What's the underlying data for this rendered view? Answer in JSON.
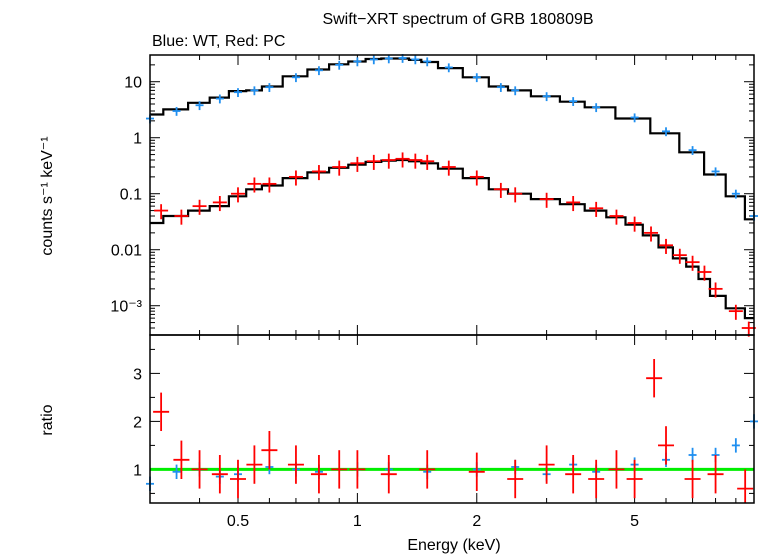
{
  "chart_data": [
    {
      "type": "scatter",
      "panel": "spectrum",
      "title": "Swift−XRT spectrum of GRB 180809B",
      "subtitle": "Blue: WT, Red: PC",
      "xlabel": "",
      "ylabel": "counts s⁻¹ keV⁻¹",
      "xscale": "log",
      "yscale": "log",
      "xlim": [
        0.3,
        10
      ],
      "ylim": [
        0.0003,
        30
      ],
      "x_ticks": [
        "0.5",
        "1",
        "2",
        "5"
      ],
      "y_ticks": [
        "10",
        "1",
        "0.1",
        "0.01",
        "10⁻³"
      ],
      "y_tick_values": [
        10,
        1,
        0.1,
        0.01,
        0.001
      ],
      "colors": {
        "WT": "#1f8ff0",
        "PC": "#ff0000",
        "model": "#000000"
      },
      "series": [
        {
          "x": [
            0.3,
            0.35,
            0.4,
            0.45,
            0.5,
            0.55,
            0.6,
            0.7,
            0.8,
            0.9,
            1.0,
            1.1,
            1.2,
            1.3,
            1.4,
            1.5,
            1.7,
            2.0,
            2.3,
            2.5,
            3.0,
            3.5,
            4.0,
            5.0,
            6.0,
            7.0,
            8.0,
            9.0,
            10.0
          ],
          "y": [
            2.2,
            3.0,
            3.8,
            5.0,
            6.5,
            7.0,
            8.0,
            12.0,
            16.0,
            20.0,
            23.0,
            25.0,
            26.0,
            26.5,
            25.0,
            23.0,
            18.0,
            12.0,
            8.0,
            7.0,
            5.5,
            4.5,
            3.5,
            2.3,
            1.3,
            0.6,
            0.25,
            0.1,
            0.04
          ]
        },
        {
          "x": [
            0.32,
            0.36,
            0.4,
            0.45,
            0.5,
            0.55,
            0.6,
            0.7,
            0.8,
            0.9,
            1.0,
            1.1,
            1.2,
            1.3,
            1.4,
            1.5,
            1.7,
            2.0,
            2.3,
            2.5,
            3.0,
            3.5,
            4.0,
            4.5,
            5.0,
            5.5,
            6.0,
            6.5,
            7.0,
            7.5,
            8.0,
            9.0,
            9.7
          ],
          "y": [
            0.05,
            0.04,
            0.06,
            0.07,
            0.1,
            0.15,
            0.15,
            0.2,
            0.25,
            0.3,
            0.35,
            0.38,
            0.4,
            0.42,
            0.4,
            0.38,
            0.3,
            0.2,
            0.12,
            0.1,
            0.08,
            0.07,
            0.055,
            0.04,
            0.03,
            0.02,
            0.012,
            0.008,
            0.006,
            0.004,
            0.002,
            0.0008,
            0.0004
          ]
        },
        {
          "x": [
            0.3,
            0.35,
            0.4,
            0.45,
            0.5,
            0.55,
            0.6,
            0.7,
            0.8,
            0.9,
            1.0,
            1.1,
            1.2,
            1.3,
            1.4,
            1.5,
            1.7,
            2.0,
            2.3,
            2.5,
            3.0,
            3.5,
            4.0,
            5.0,
            6.0,
            7.0,
            8.0,
            9.0,
            10.0
          ],
          "y": [
            2.6,
            3.2,
            4.2,
            5.2,
            6.8,
            7.0,
            8.2,
            12.5,
            16.5,
            20.5,
            23.0,
            25.5,
            26.0,
            26.0,
            24.5,
            22.5,
            17.5,
            12.0,
            8.2,
            7.0,
            5.5,
            4.4,
            3.5,
            2.2,
            1.2,
            0.55,
            0.22,
            0.09,
            0.035
          ]
        },
        {
          "x": [
            0.3,
            0.35,
            0.4,
            0.45,
            0.5,
            0.55,
            0.6,
            0.7,
            0.8,
            0.9,
            1.0,
            1.1,
            1.2,
            1.3,
            1.4,
            1.5,
            1.7,
            2.0,
            2.3,
            2.5,
            3.0,
            3.5,
            4.0,
            4.5,
            5.0,
            5.5,
            6.0,
            6.5,
            7.0,
            7.5,
            8.0,
            9.0,
            10.0
          ],
          "y": [
            0.03,
            0.04,
            0.05,
            0.06,
            0.09,
            0.12,
            0.14,
            0.19,
            0.24,
            0.29,
            0.33,
            0.37,
            0.39,
            0.4,
            0.38,
            0.35,
            0.28,
            0.19,
            0.12,
            0.1,
            0.08,
            0.065,
            0.05,
            0.038,
            0.028,
            0.018,
            0.011,
            0.007,
            0.005,
            0.003,
            0.0015,
            0.0009,
            0.0006
          ]
        }
      ]
    },
    {
      "type": "scatter",
      "panel": "ratio",
      "xlabel": "Energy (keV)",
      "ylabel": "ratio",
      "xscale": "log",
      "xlim": [
        0.3,
        10
      ],
      "ylim": [
        0.3,
        3.8
      ],
      "x_ticks": [
        "0.5",
        "1",
        "2",
        "5"
      ],
      "y_ticks": [
        "1",
        "2",
        "3"
      ],
      "y_tick_values": [
        1,
        2,
        3
      ],
      "reference_line": 1,
      "reference_line_color": "#00ee00",
      "series": [
        {
          "x": [
            0.3,
            0.35,
            0.4,
            0.45,
            0.5,
            0.6,
            0.7,
            0.8,
            1.0,
            1.2,
            1.5,
            2.0,
            2.5,
            3.0,
            3.5,
            4.0,
            5.0,
            6.0,
            7.0,
            8.0,
            9.0,
            10.0
          ],
          "y": [
            0.7,
            0.95,
            1.0,
            0.85,
            0.9,
            1.05,
            1.0,
            0.95,
            1.0,
            1.0,
            0.95,
            1.0,
            1.05,
            0.9,
            1.1,
            0.95,
            1.1,
            1.2,
            1.3,
            1.3,
            1.5,
            2.0
          ]
        },
        {
          "x": [
            0.32,
            0.36,
            0.4,
            0.45,
            0.5,
            0.55,
            0.6,
            0.7,
            0.8,
            0.9,
            1.0,
            1.2,
            1.5,
            2.0,
            2.5,
            3.0,
            3.5,
            4.0,
            4.5,
            5.0,
            5.6,
            6.0,
            7.0,
            8.0,
            9.5
          ],
          "y": [
            2.2,
            1.2,
            1.0,
            0.9,
            0.8,
            1.1,
            1.4,
            1.1,
            0.9,
            1.0,
            1.0,
            0.9,
            1.0,
            0.95,
            0.8,
            1.1,
            0.9,
            0.8,
            1.0,
            0.8,
            2.9,
            1.5,
            0.8,
            0.9,
            0.6
          ]
        }
      ]
    }
  ]
}
